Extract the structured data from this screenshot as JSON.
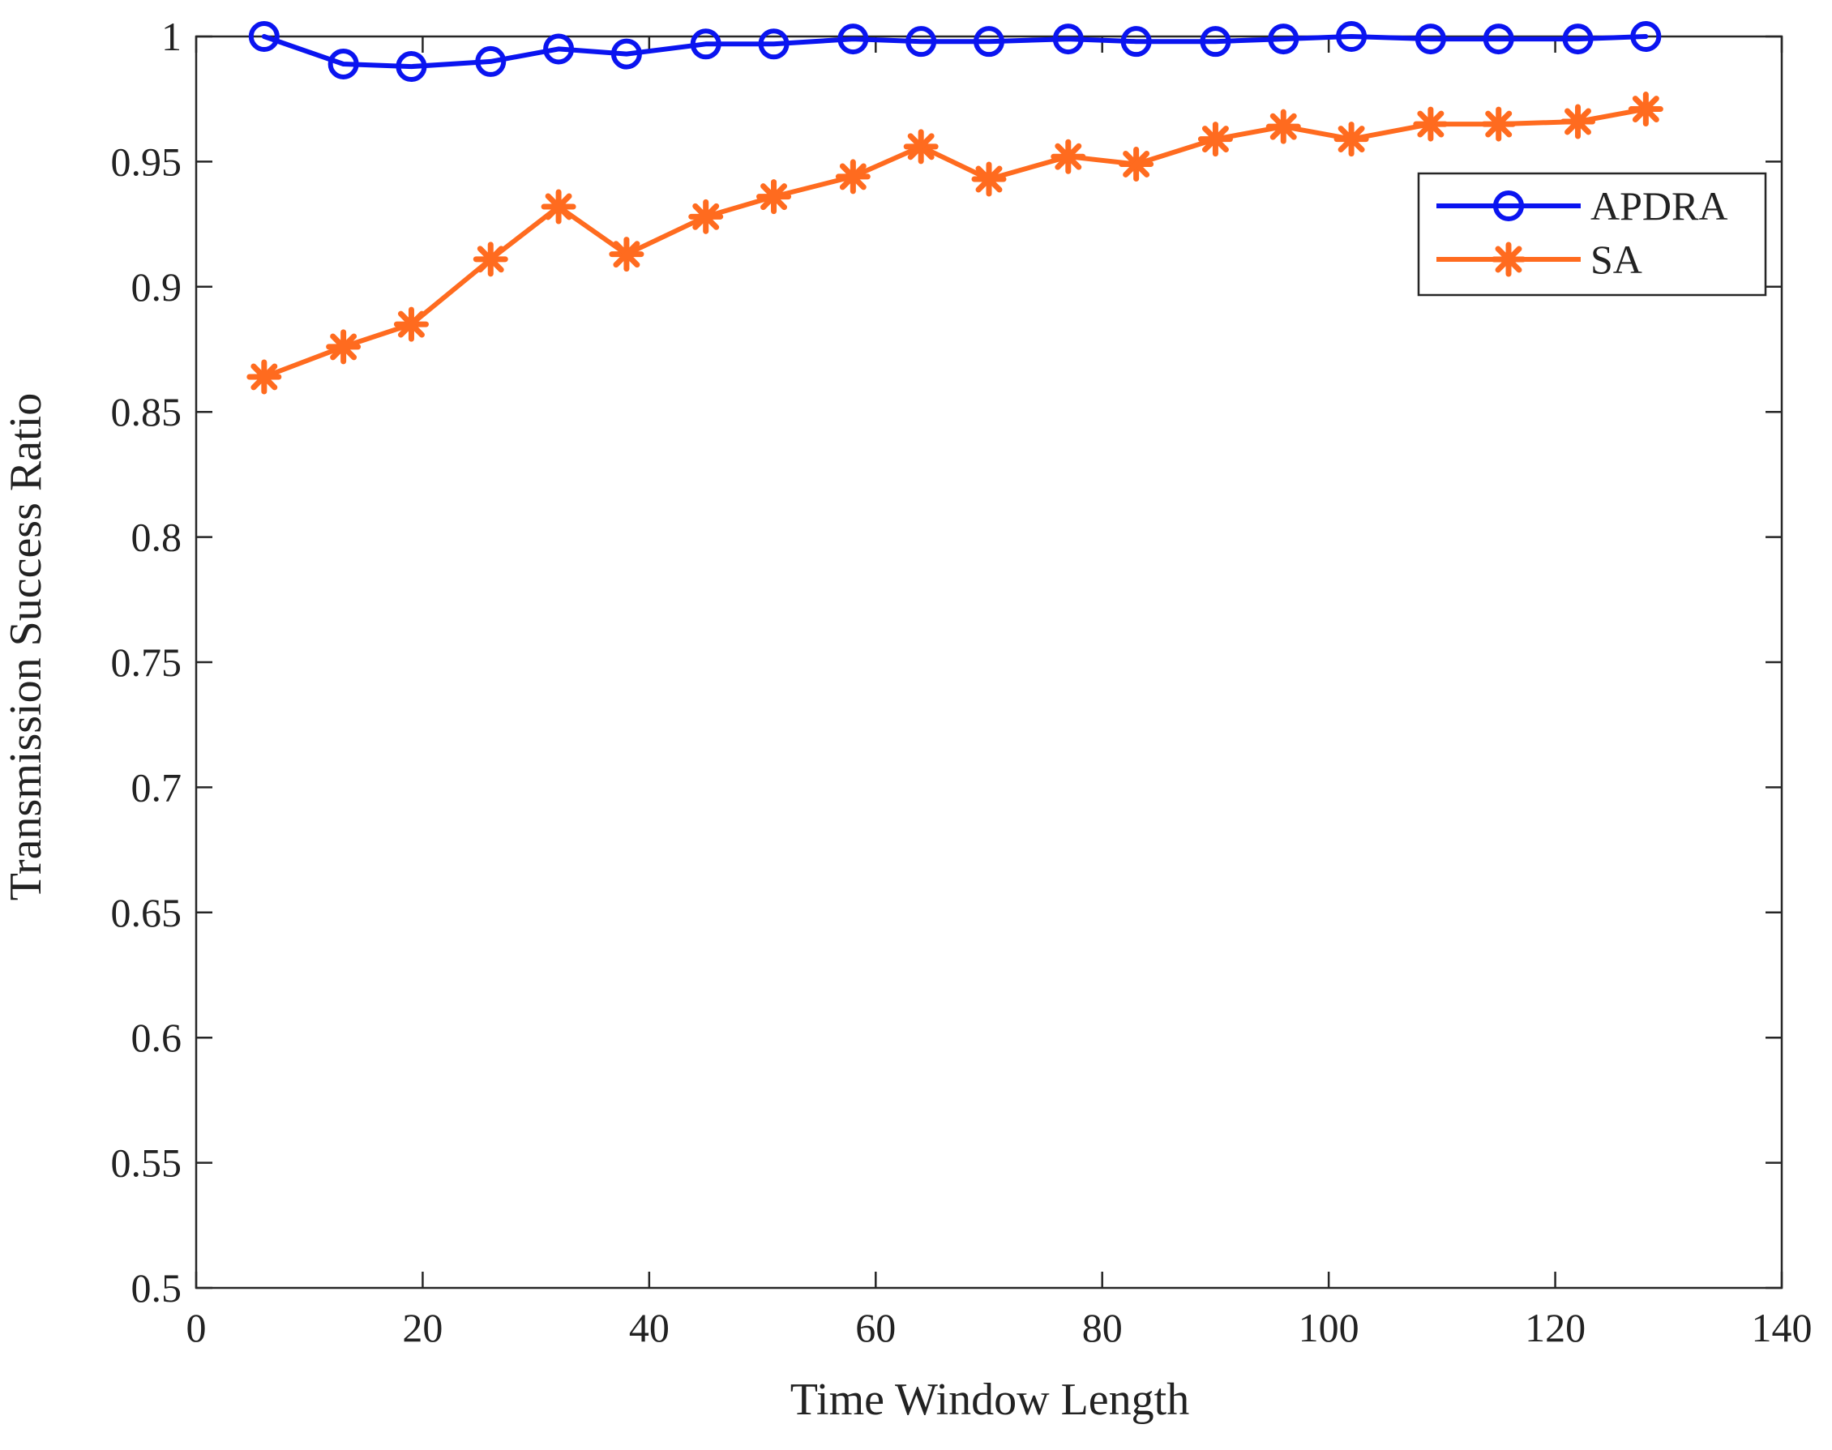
{
  "chart_data": {
    "type": "line",
    "title": "",
    "xlabel": "Time Window Length",
    "ylabel": "Transmission Success Ratio",
    "xlim": [
      0,
      140
    ],
    "ylim": [
      0.5,
      1.0
    ],
    "xticks": [
      0,
      20,
      40,
      60,
      80,
      100,
      120,
      140
    ],
    "yticks": [
      0.5,
      0.55,
      0.6,
      0.65,
      0.7,
      0.75,
      0.8,
      0.85,
      0.9,
      0.95,
      1.0
    ],
    "xtick_labels": [
      "0",
      "20",
      "40",
      "60",
      "80",
      "100",
      "120",
      "140"
    ],
    "ytick_labels": [
      "0.5",
      "0.55",
      "0.6",
      "0.65",
      "0.7",
      "0.75",
      "0.8",
      "0.85",
      "0.9",
      "0.95",
      "1"
    ],
    "grid": false,
    "legend_position": "top-right",
    "x": [
      6,
      13,
      19,
      26,
      32,
      38,
      45,
      51,
      58,
      64,
      70,
      77,
      83,
      90,
      96,
      102,
      109,
      115,
      122,
      128
    ],
    "series": [
      {
        "name": "APDRA",
        "color": "#0a14f0",
        "marker": "circle",
        "values": [
          1.0,
          0.989,
          0.988,
          0.99,
          0.995,
          0.993,
          0.997,
          0.997,
          0.999,
          0.998,
          0.998,
          0.999,
          0.998,
          0.998,
          0.999,
          1.0,
          0.999,
          0.999,
          0.999,
          1.0
        ]
      },
      {
        "name": "SA",
        "color": "#ff6b1f",
        "marker": "asterisk",
        "values": [
          0.864,
          0.876,
          0.885,
          0.911,
          0.932,
          0.913,
          0.928,
          0.936,
          0.944,
          0.956,
          0.943,
          0.952,
          0.949,
          0.959,
          0.964,
          0.959,
          0.965,
          0.965,
          0.966,
          0.971
        ]
      }
    ]
  }
}
